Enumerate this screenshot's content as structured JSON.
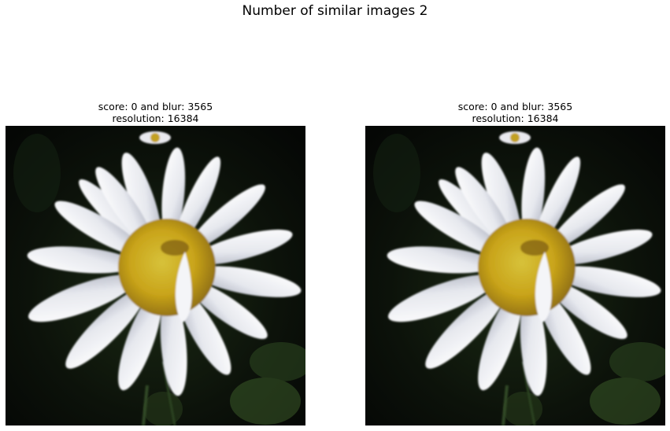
{
  "figure": {
    "title": "Number of similar images 2"
  },
  "panels": [
    {
      "score_line": "score: 0 and blur: 3565",
      "resolution_line": "resolution: 16384",
      "image_subject": "daisy-flower-photo"
    },
    {
      "score_line": "score: 0 and blur: 3565",
      "resolution_line": "resolution: 16384",
      "image_subject": "daisy-flower-photo"
    }
  ]
}
